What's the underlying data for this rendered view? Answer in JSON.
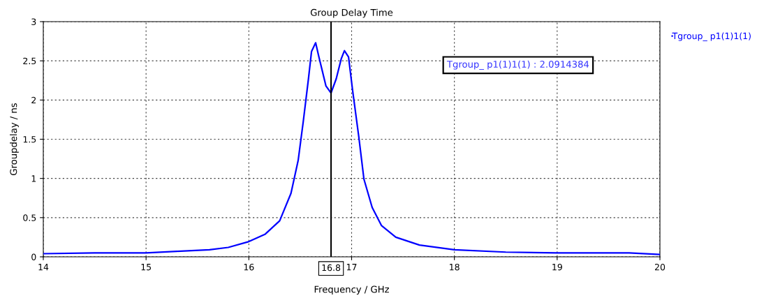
{
  "chart_data": {
    "type": "line",
    "title": "Group Delay Time",
    "xlabel": "Frequency / GHz",
    "ylabel": "Groupdelay / ns",
    "xlim": [
      14,
      20
    ],
    "xticks": [
      14,
      15,
      16,
      17,
      18,
      19,
      20
    ],
    "ylim": [
      0,
      3
    ],
    "yticks": [
      0,
      0.5,
      1,
      1.5,
      2,
      2.5,
      3
    ],
    "grid": true,
    "legend": "right",
    "marker": "none",
    "line_style": "solid",
    "series": [
      {
        "name": "Tgroup_ p1(1)1(1)",
        "color": "#0000ff",
        "x": [
          14,
          14.5,
          15,
          15.3,
          15.617,
          15.8,
          15.99,
          16.16,
          16.3,
          16.41,
          16.48,
          16.53,
          16.58,
          16.61,
          16.65,
          16.68,
          16.75,
          16.8,
          16.85,
          16.9,
          16.93,
          16.97,
          17.01,
          17.07,
          17.12,
          17.2,
          17.29,
          17.43,
          17.66,
          18,
          18.5,
          19,
          19.7,
          20
        ],
        "values": [
          0.04,
          0.05,
          0.05,
          0.07,
          0.09,
          0.12,
          0.19,
          0.29,
          0.46,
          0.81,
          1.23,
          1.73,
          2.27,
          2.62,
          2.73,
          2.56,
          2.18,
          2.09,
          2.27,
          2.53,
          2.63,
          2.55,
          2.12,
          1.53,
          0.99,
          0.63,
          0.4,
          0.25,
          0.15,
          0.09,
          0.06,
          0.05,
          0.05,
          0.03
        ]
      }
    ],
    "ref_lines": [
      {
        "axis": "x",
        "value": 16.8,
        "label": "16.8",
        "color": "#000000",
        "line_style": "solid"
      }
    ],
    "annotations": [
      "Tgroup_ p1(1)1(1) : 2.0914384"
    ]
  }
}
